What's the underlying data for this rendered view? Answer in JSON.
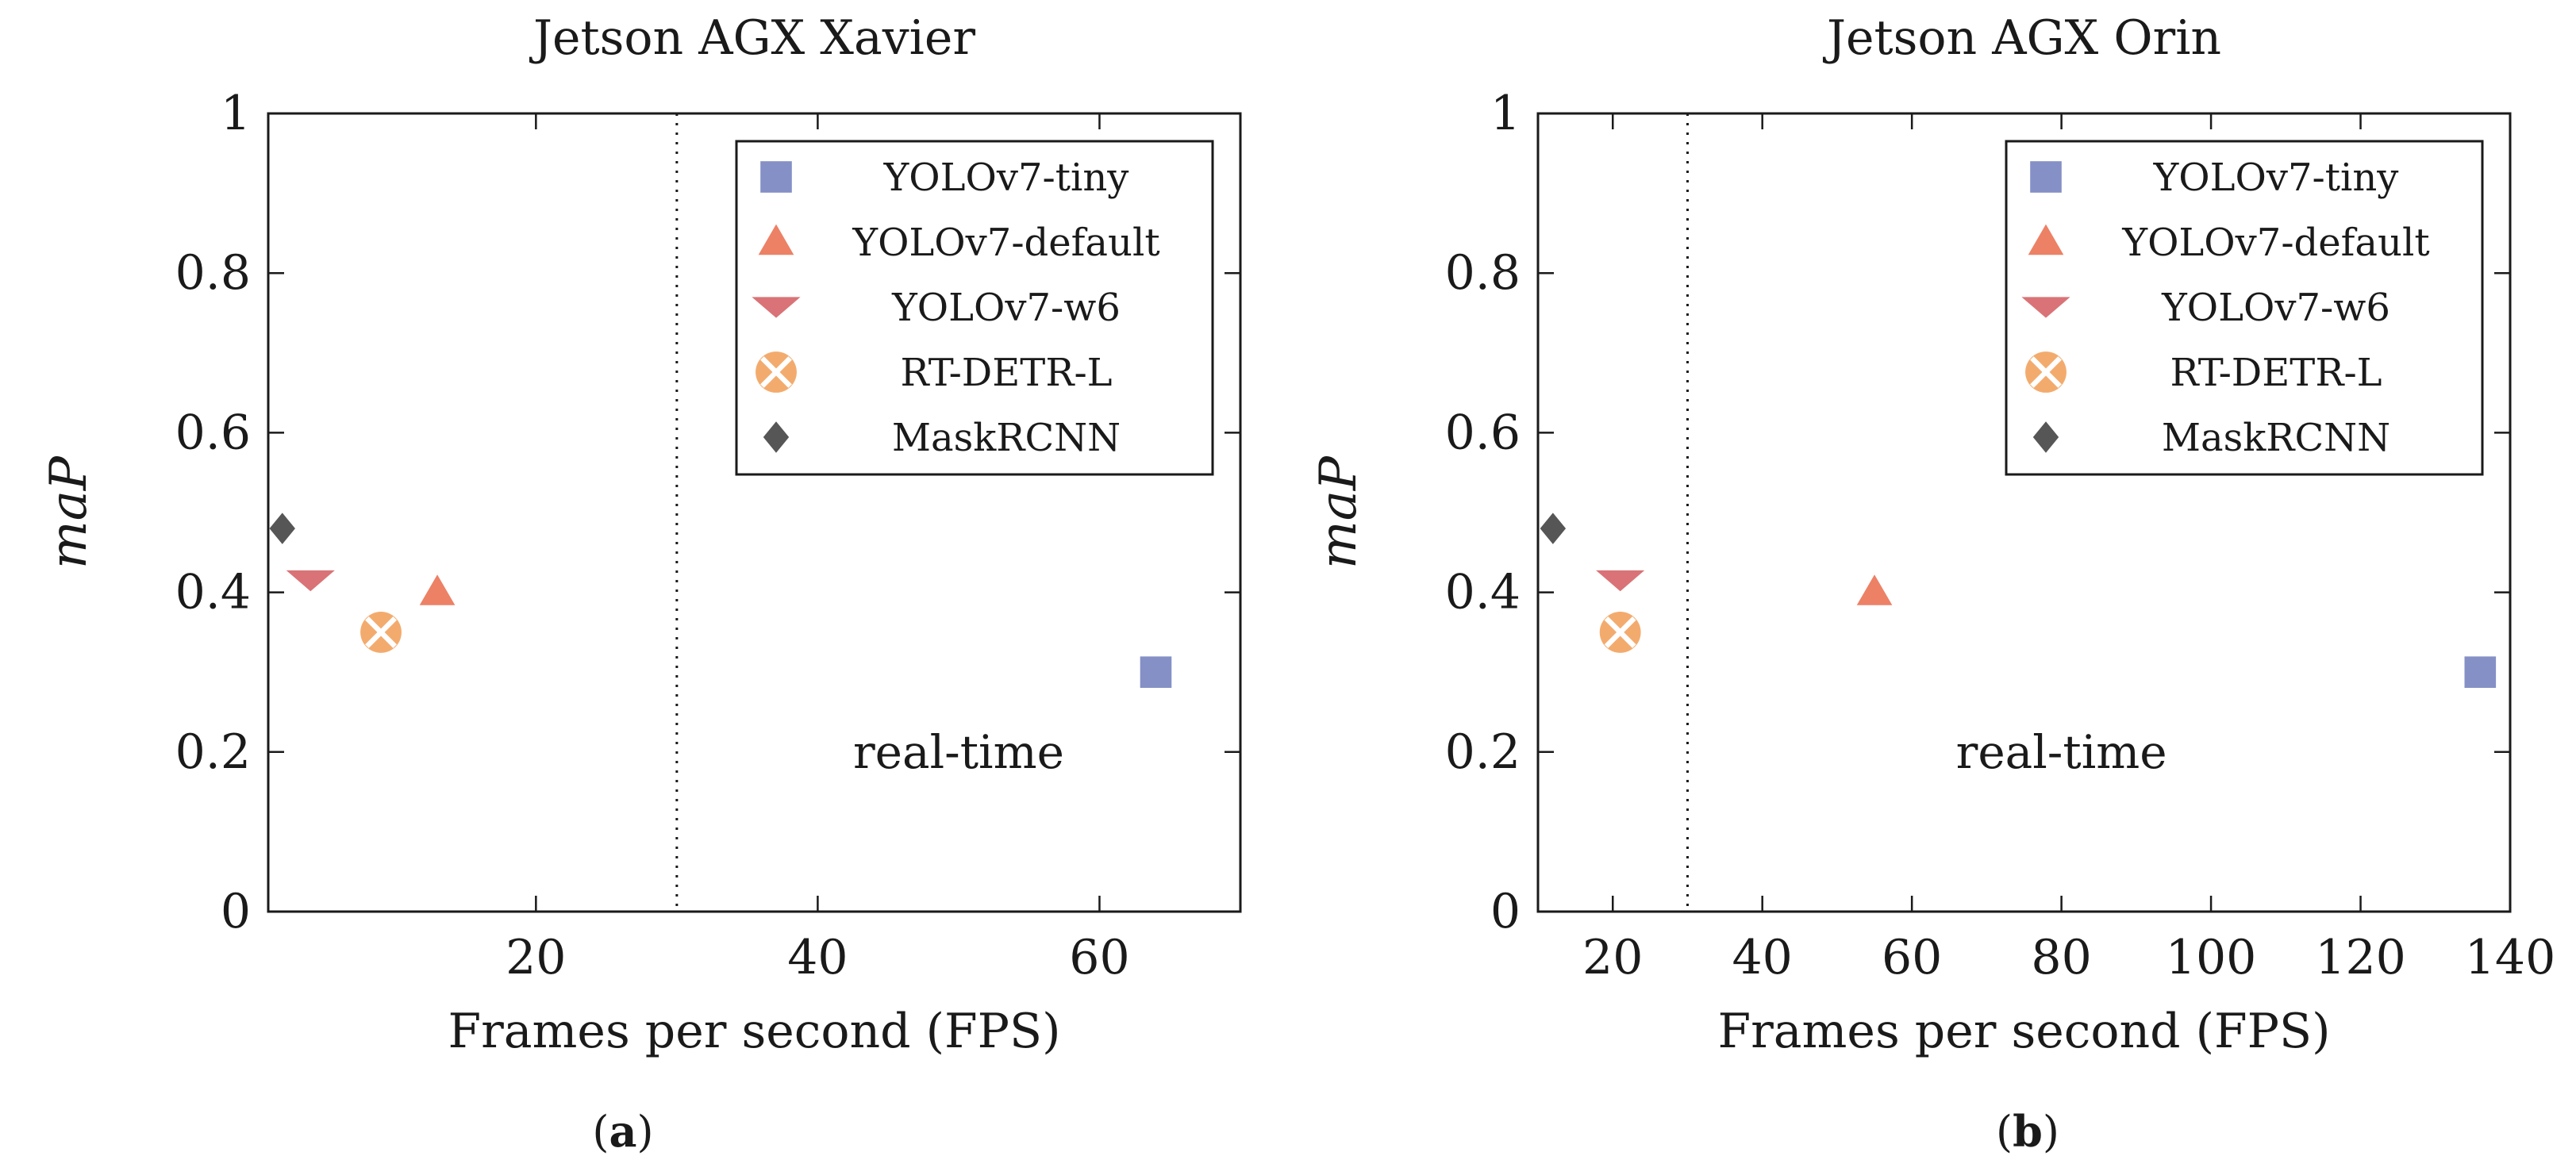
{
  "chart_data": [
    {
      "type": "scatter",
      "panel": "a",
      "title": "Jetson AGX Xavier",
      "xlabel": "Frames per second (FPS)",
      "ylabel": "maP",
      "xlim": [
        1,
        70
      ],
      "ylim": [
        0,
        1
      ],
      "xticks": [
        20,
        40,
        60
      ],
      "yticks": [
        0,
        0.2,
        0.4,
        0.6,
        0.8,
        1
      ],
      "ytick_labels": [
        "0",
        "0.2",
        "0.4",
        "0.6",
        "0.8",
        "1"
      ],
      "threshold_x": 30,
      "annotation": {
        "text": "real-time",
        "x": 50,
        "y": 0.2
      },
      "caption_letter": "a",
      "series": [
        {
          "name": "YOLOv7-tiny",
          "marker": "square",
          "color": "#8590c6",
          "x": 64,
          "y": 0.3
        },
        {
          "name": "YOLOv7-default",
          "marker": "triangle-up",
          "color": "#ec8166",
          "x": 13,
          "y": 0.4
        },
        {
          "name": "YOLOv7-w6",
          "marker": "triangle-down",
          "color": "#d97377",
          "x": 4,
          "y": 0.415
        },
        {
          "name": "RT-DETR-L",
          "marker": "circle-x",
          "color": "#f3ab6d",
          "x": 9,
          "y": 0.35
        },
        {
          "name": "MaskRCNN",
          "marker": "diamond",
          "color": "#565656",
          "x": 2,
          "y": 0.48
        }
      ],
      "legend_position": "top-right"
    },
    {
      "type": "scatter",
      "panel": "b",
      "title": "Jetson AGX Orin",
      "xlabel": "Frames per second (FPS)",
      "ylabel": "maP",
      "xlim": [
        10,
        140
      ],
      "ylim": [
        0,
        1
      ],
      "xticks": [
        20,
        40,
        60,
        80,
        100,
        120,
        140
      ],
      "yticks": [
        0,
        0.2,
        0.4,
        0.6,
        0.8,
        1
      ],
      "ytick_labels": [
        "0",
        "0.2",
        "0.4",
        "0.6",
        "0.8",
        "1"
      ],
      "threshold_x": 30,
      "annotation": {
        "text": "real-time",
        "x": 80,
        "y": 0.2
      },
      "caption_letter": "b",
      "series": [
        {
          "name": "YOLOv7-tiny",
          "marker": "square",
          "color": "#8590c6",
          "x": 136,
          "y": 0.3
        },
        {
          "name": "YOLOv7-default",
          "marker": "triangle-up",
          "color": "#ec8166",
          "x": 55,
          "y": 0.4
        },
        {
          "name": "YOLOv7-w6",
          "marker": "triangle-down",
          "color": "#d97377",
          "x": 21,
          "y": 0.415
        },
        {
          "name": "RT-DETR-L",
          "marker": "circle-x",
          "color": "#f3ab6d",
          "x": 21,
          "y": 0.35
        },
        {
          "name": "MaskRCNN",
          "marker": "diamond",
          "color": "#565656",
          "x": 12,
          "y": 0.48
        }
      ],
      "legend_position": "top-right"
    }
  ]
}
